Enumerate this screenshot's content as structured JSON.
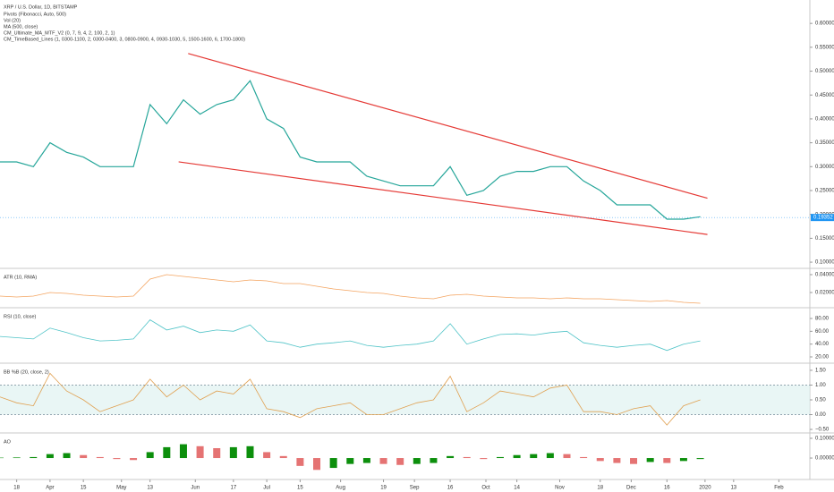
{
  "header": {
    "symbol": "XRP / U.S. Dollar, 1D, BITSTAMP",
    "studies": [
      "Pivots (Fibonacci, Auto, 500)",
      "Vol (20)",
      "MA (500, close)",
      "CM_Ultimate_MA_MTF_V2 (0, 7, 9, 4, 2, 100, 2, 1)",
      "CM_TimeBased_Lines (1, 0300-1100, 2, 0300-0400, 3, 0800-0900, 4, 0930-1030, 5, 1500-1600, 6, 1700-1800)"
    ]
  },
  "chart_data": [
    {
      "type": "line",
      "x": [
        "03-11",
        "03-18",
        "03-25",
        "04-01",
        "04-08",
        "04-15",
        "04-22",
        "04-29",
        "05-06",
        "05-13",
        "05-20",
        "05-27",
        "06-03",
        "06-10",
        "06-17",
        "06-24",
        "07-01",
        "07-08",
        "07-15",
        "07-22",
        "07-29",
        "08-05",
        "08-12",
        "08-19",
        "08-26",
        "09-02",
        "09-09",
        "09-16",
        "09-23",
        "09-30",
        "10-07",
        "10-14",
        "10-21",
        "10-28",
        "11-04",
        "11-11",
        "11-18",
        "11-25",
        "12-02",
        "12-09",
        "12-16",
        "12-23",
        "12-30"
      ],
      "xlim": [
        "03-11",
        "02-14"
      ],
      "xticks": [
        {
          "value": "03-18",
          "label": "18"
        },
        {
          "value": "04-01",
          "label": "Apr"
        },
        {
          "value": "04-15",
          "label": "15"
        },
        {
          "value": "05-01",
          "label": "May"
        },
        {
          "value": "05-13",
          "label": "13"
        },
        {
          "value": "06-01",
          "label": "Jun"
        },
        {
          "value": "06-17",
          "label": "17"
        },
        {
          "value": "07-01",
          "label": "Jul"
        },
        {
          "value": "07-15",
          "label": "15"
        },
        {
          "value": "08-01",
          "label": "Aug"
        },
        {
          "value": "08-19",
          "label": "19"
        },
        {
          "value": "09-01",
          "label": "Sep"
        },
        {
          "value": "09-16",
          "label": "16"
        },
        {
          "value": "10-01",
          "label": "Oct"
        },
        {
          "value": "10-14",
          "label": "14"
        },
        {
          "value": "11-01",
          "label": "Nov"
        },
        {
          "value": "11-18",
          "label": "18"
        },
        {
          "value": "12-01",
          "label": "Dec"
        },
        {
          "value": "12-16",
          "label": "16"
        },
        {
          "value": "01-01",
          "label": "2020"
        },
        {
          "value": "01-13",
          "label": "13"
        },
        {
          "value": "02-01",
          "label": "Feb"
        }
      ],
      "series": [
        {
          "color": "#26a69a",
          "values": [
            0.31,
            0.31,
            0.3,
            0.35,
            0.33,
            0.32,
            0.3,
            0.3,
            0.3,
            0.43,
            0.39,
            0.44,
            0.41,
            0.43,
            0.44,
            0.48,
            0.4,
            0.38,
            0.32,
            0.31,
            0.31,
            0.31,
            0.28,
            0.27,
            0.26,
            0.26,
            0.26,
            0.3,
            0.24,
            0.25,
            0.28,
            0.29,
            0.29,
            0.3,
            0.3,
            0.27,
            0.25,
            0.22,
            0.22,
            0.22,
            0.19,
            0.19,
            0.195
          ]
        }
      ],
      "trendlines": [
        {
          "color": "#e53935",
          "x": [
            "05-29",
            "01-02"
          ],
          "values": [
            0.537,
            0.234
          ]
        },
        {
          "color": "#e53935",
          "x": [
            "05-25",
            "01-02"
          ],
          "values": [
            0.31,
            0.158
          ]
        }
      ],
      "last_price": 0.19352,
      "ylim": [
        0.087,
        0.649
      ],
      "yticks": [
        {
          "value": 0.1,
          "label": "0.10000"
        },
        {
          "value": 0.15,
          "label": "0.15000"
        },
        {
          "value": 0.2,
          "label": "0.20000"
        },
        {
          "value": 0.25,
          "label": "0.25000"
        },
        {
          "value": 0.3,
          "label": "0.30000"
        },
        {
          "value": 0.35,
          "label": "0.35000"
        },
        {
          "value": 0.4,
          "label": "0.40000"
        },
        {
          "value": 0.45,
          "label": "0.45000"
        },
        {
          "value": 0.5,
          "label": "0.50000"
        },
        {
          "value": 0.55,
          "label": "0.55000"
        },
        {
          "value": 0.6,
          "label": "0.60000"
        }
      ]
    },
    {
      "type": "line",
      "title": "ATR (10, RMA)",
      "series": [
        {
          "color": "#f4a460",
          "values": [
            0.016,
            0.015,
            0.016,
            0.02,
            0.019,
            0.017,
            0.016,
            0.015,
            0.016,
            0.035,
            0.04,
            0.038,
            0.036,
            0.034,
            0.032,
            0.034,
            0.033,
            0.03,
            0.03,
            0.027,
            0.024,
            0.022,
            0.02,
            0.019,
            0.016,
            0.014,
            0.013,
            0.017,
            0.018,
            0.016,
            0.015,
            0.014,
            0.014,
            0.013,
            0.014,
            0.013,
            0.013,
            0.012,
            0.011,
            0.01,
            0.011,
            0.009,
            0.008
          ]
        }
      ],
      "ylim": [
        0.004,
        0.045
      ],
      "yticks": [
        {
          "value": 0.02,
          "label": "0.02000"
        },
        {
          "value": 0.04,
          "label": "0.04000"
        }
      ]
    },
    {
      "type": "line",
      "title": "RSI (10, close)",
      "series": [
        {
          "color": "#4fc3c7",
          "values": [
            52,
            50,
            48,
            65,
            58,
            50,
            45,
            46,
            48,
            78,
            62,
            68,
            58,
            62,
            60,
            70,
            45,
            42,
            35,
            40,
            42,
            45,
            38,
            35,
            38,
            40,
            45,
            72,
            40,
            48,
            55,
            56,
            54,
            58,
            60,
            42,
            38,
            35,
            38,
            40,
            30,
            40,
            45
          ]
        }
      ],
      "ylim": [
        11.6,
        94
      ],
      "yticks": [
        {
          "value": 20,
          "label": "20.00"
        },
        {
          "value": 40,
          "label": "40.00"
        },
        {
          "value": 60,
          "label": "60.00"
        },
        {
          "value": 80,
          "label": "80.00"
        }
      ]
    },
    {
      "type": "line",
      "title": "BB %B (20, close, 2)",
      "band": [
        0,
        1
      ],
      "series": [
        {
          "color": "#e0a050",
          "values": [
            0.6,
            0.4,
            0.3,
            1.4,
            0.8,
            0.5,
            0.1,
            0.3,
            0.5,
            1.2,
            0.6,
            1.0,
            0.5,
            0.8,
            0.7,
            1.2,
            0.2,
            0.1,
            -0.1,
            0.2,
            0.3,
            0.4,
            0,
            0,
            0.2,
            0.4,
            0.5,
            1.3,
            0.1,
            0.4,
            0.8,
            0.7,
            0.6,
            0.9,
            1.0,
            0.1,
            0.1,
            0,
            0.2,
            0.3,
            -0.35,
            0.3,
            0.5
          ]
        }
      ],
      "ylim": [
        -0.59,
        1.68
      ],
      "yticks": [
        {
          "value": -0.5,
          "label": "−0.50"
        },
        {
          "value": 0,
          "label": "0.00"
        },
        {
          "value": 0.5,
          "label": "0.50"
        },
        {
          "value": 1,
          "label": "1.00"
        },
        {
          "value": 1.5,
          "label": "1.50"
        }
      ]
    },
    {
      "type": "bar",
      "title": "AO",
      "series": [
        {
          "color_up": "#0c8f0c",
          "color_down": "#e57373",
          "values": [
            0.002,
            0.003,
            0.005,
            0.02,
            0.025,
            0.015,
            0.005,
            -0.005,
            -0.01,
            0.03,
            0.055,
            0.07,
            0.06,
            0.05,
            0.055,
            0.06,
            0.03,
            0.01,
            -0.04,
            -0.06,
            -0.05,
            -0.03,
            -0.025,
            -0.03,
            -0.035,
            -0.03,
            -0.025,
            0.01,
            0.005,
            -0.005,
            0.005,
            0.015,
            0.02,
            0.025,
            0.02,
            0.005,
            -0.015,
            -0.025,
            -0.03,
            -0.02,
            -0.025,
            -0.015,
            -0.005
          ]
        }
      ],
      "ylim": [
        -0.095,
        0.118
      ],
      "yticks": [
        {
          "value": 0,
          "label": "0.00000"
        },
        {
          "value": 0.1,
          "label": "0.10000"
        }
      ]
    }
  ]
}
